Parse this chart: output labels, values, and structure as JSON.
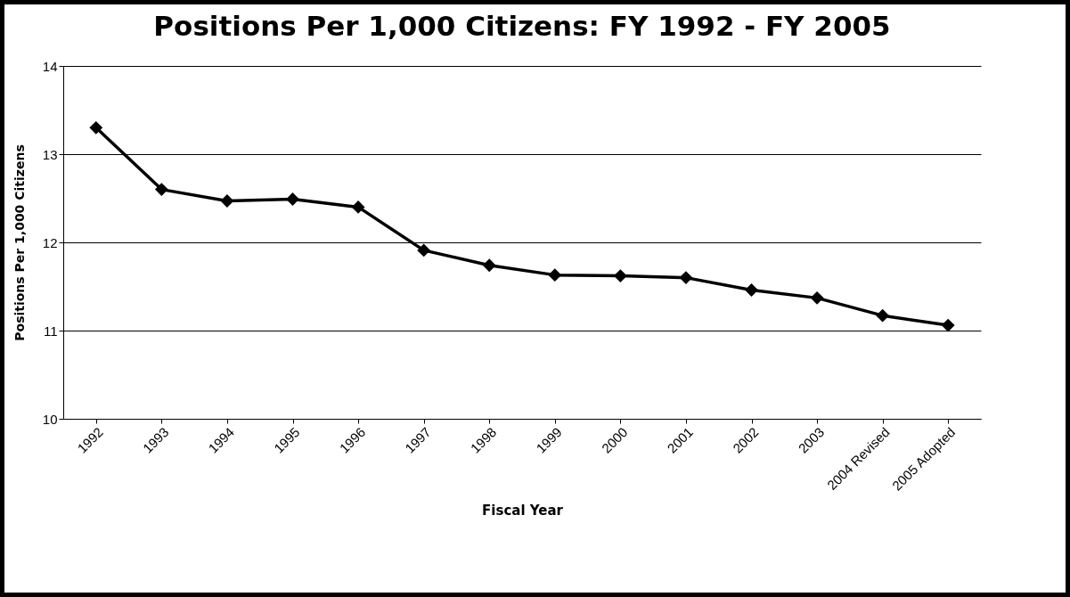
{
  "chart_data": {
    "type": "line",
    "title": "Positions Per 1,000 Citizens: FY 1992 - FY 2005",
    "xlabel": "Fiscal Year",
    "ylabel": "Positions Per 1,000 Citizens",
    "categories": [
      "1992",
      "1993",
      "1994",
      "1995",
      "1996",
      "1997",
      "1998",
      "1999",
      "2000",
      "2001",
      "2002",
      "2003",
      "2004 Revised",
      "2005 Adopted"
    ],
    "series": [
      {
        "color": "#000000",
        "values": [
          13.3,
          12.6,
          12.47,
          12.49,
          12.4,
          11.91,
          11.74,
          11.63,
          11.62,
          11.6,
          11.46,
          11.37,
          11.17,
          11.06
        ]
      }
    ],
    "ylim": [
      10,
      14
    ],
    "yticks": [
      10,
      11,
      12,
      13,
      14
    ],
    "grid": "y",
    "legend": false,
    "marker": "diamond",
    "line_style": "solid"
  }
}
